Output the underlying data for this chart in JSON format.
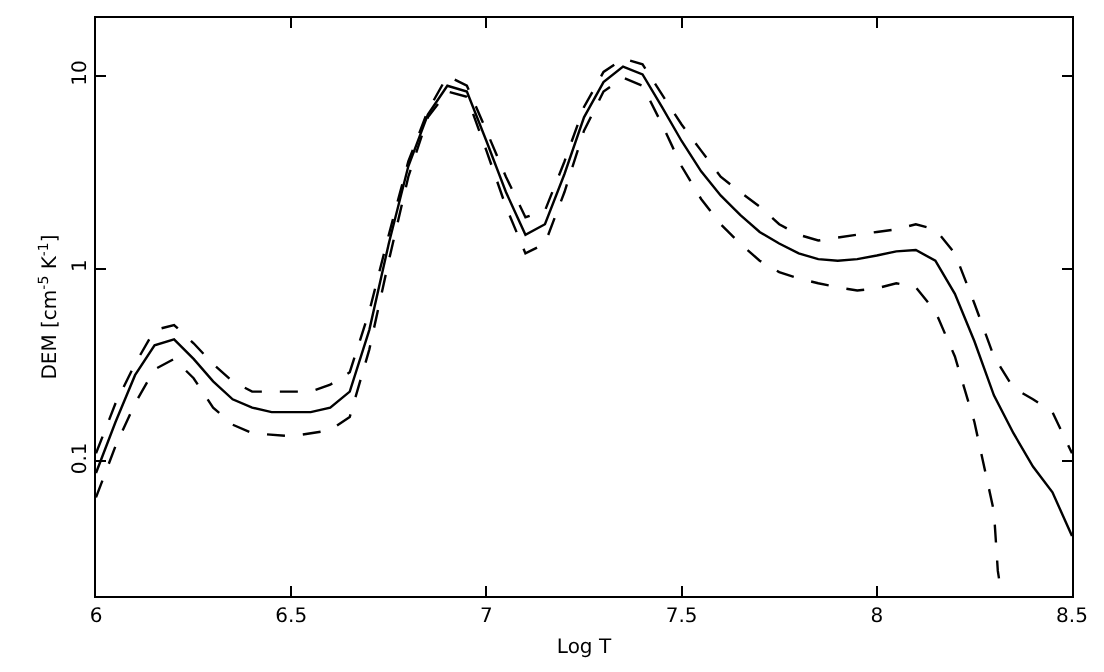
{
  "chart_data": {
    "type": "line",
    "xlabel": "Log T",
    "ylabel": "DEM [cm$^{-5}$ K$^{-1}$]",
    "log": "y",
    "marker": "none",
    "xlim": [
      6,
      8.5
    ],
    "xticks": [
      6,
      6.5,
      7,
      7.5,
      8,
      8.5
    ],
    "ylim": [
      0.02,
      20
    ],
    "yticks": [
      0.1,
      1,
      10
    ],
    "x": [
      6.0,
      6.05,
      6.1,
      6.15,
      6.2,
      6.25,
      6.3,
      6.35,
      6.4,
      6.45,
      6.5,
      6.55,
      6.6,
      6.65,
      6.7,
      6.75,
      6.8,
      6.85,
      6.9,
      6.95,
      7.0,
      7.05,
      7.1,
      7.15,
      7.2,
      7.25,
      7.3,
      7.35,
      7.4,
      7.45,
      7.5,
      7.55,
      7.6,
      7.65,
      7.7,
      7.75,
      7.8,
      7.85,
      7.9,
      7.95,
      8.0,
      8.05,
      8.1,
      8.15,
      8.2,
      8.25,
      8.3,
      8.35,
      8.4,
      8.45,
      8.5
    ],
    "series": [
      {
        "color": "#000000",
        "line_style": "solid",
        "values": [
          0.087,
          0.16,
          0.28,
          0.4,
          0.43,
          0.34,
          0.26,
          0.21,
          0.19,
          0.18,
          0.18,
          0.18,
          0.19,
          0.23,
          0.48,
          1.35,
          3.4,
          6.3,
          8.9,
          8.3,
          4.6,
          2.5,
          1.5,
          1.7,
          3.1,
          6.1,
          9.3,
          11.2,
          10.2,
          6.9,
          4.6,
          3.2,
          2.4,
          1.9,
          1.55,
          1.35,
          1.2,
          1.12,
          1.1,
          1.12,
          1.17,
          1.23,
          1.25,
          1.1,
          0.74,
          0.42,
          0.22,
          0.14,
          0.094,
          0.069,
          0.041
        ]
      },
      {
        "color": "#000000",
        "line_style": "dashed",
        "values": [
          0.11,
          0.2,
          0.32,
          0.48,
          0.51,
          0.41,
          0.32,
          0.26,
          0.23,
          0.23,
          0.23,
          0.23,
          0.25,
          0.29,
          0.6,
          1.5,
          3.6,
          6.6,
          10,
          8.9,
          5.2,
          3.0,
          1.85,
          2.0,
          3.6,
          6.9,
          10.5,
          12.3,
          11.5,
          8.0,
          5.6,
          4.1,
          3.0,
          2.5,
          2.1,
          1.7,
          1.5,
          1.4,
          1.45,
          1.5,
          1.55,
          1.6,
          1.7,
          1.6,
          1.2,
          0.66,
          0.35,
          0.24,
          0.21,
          0.18,
          0.11
        ]
      },
      {
        "color": "#000000",
        "line_style": "dashed",
        "x": [
          6.0,
          6.05,
          6.1,
          6.15,
          6.2,
          6.25,
          6.3,
          6.35,
          6.4,
          6.5,
          6.6,
          6.65,
          6.7,
          6.75,
          6.8,
          6.85,
          6.9,
          6.95,
          7.0,
          7.05,
          7.1,
          7.15,
          7.2,
          7.25,
          7.3,
          7.35,
          7.4,
          7.45,
          7.5,
          7.55,
          7.6,
          7.65,
          7.7,
          7.75,
          7.8,
          7.85,
          7.9,
          7.95,
          8.0,
          8.05,
          8.1,
          8.15,
          8.2,
          8.25,
          8.3,
          8.31,
          8.32
        ],
        "values": [
          0.065,
          0.12,
          0.2,
          0.3,
          0.34,
          0.27,
          0.19,
          0.155,
          0.14,
          0.135,
          0.145,
          0.17,
          0.38,
          1.1,
          3.0,
          6.1,
          8.3,
          7.8,
          4.1,
          2.1,
          1.2,
          1.35,
          2.5,
          5.2,
          8.3,
          9.8,
          8.9,
          5.6,
          3.4,
          2.3,
          1.7,
          1.35,
          1.1,
          0.96,
          0.89,
          0.84,
          0.8,
          0.77,
          0.79,
          0.84,
          0.8,
          0.6,
          0.35,
          0.16,
          0.055,
          0.027,
          0.02
        ]
      }
    ]
  }
}
